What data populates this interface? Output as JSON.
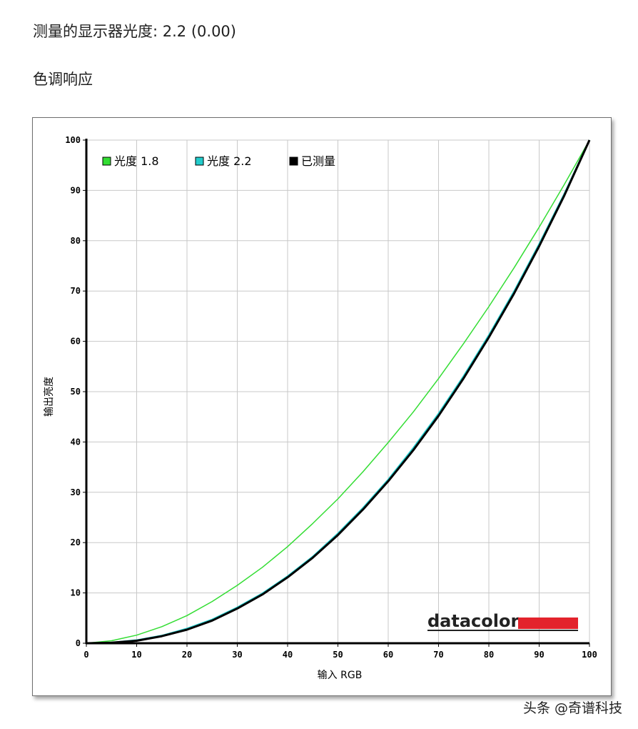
{
  "header": {
    "gamma_label": "测量的显示器光度:",
    "gamma_value": "2.2 (0.00)",
    "section_title": "色调响应"
  },
  "chart_data": {
    "type": "line",
    "xlabel": "输入 RGB",
    "ylabel": "输出亮度",
    "xlim": [
      0,
      100
    ],
    "ylim": [
      0,
      100
    ],
    "xticks": [
      0,
      10,
      20,
      30,
      40,
      50,
      60,
      70,
      80,
      90,
      100
    ],
    "yticks": [
      0,
      10,
      20,
      30,
      40,
      50,
      60,
      70,
      80,
      90,
      100
    ],
    "grid": true,
    "legend_position": "top-left",
    "series": [
      {
        "name": "光度 1.8",
        "color": "#33dd33",
        "x": [
          0,
          5,
          10,
          15,
          20,
          25,
          30,
          35,
          40,
          45,
          50,
          55,
          60,
          65,
          70,
          75,
          80,
          85,
          90,
          95,
          100
        ],
        "y": [
          0,
          0.5,
          1.6,
          3.3,
          5.5,
          8.3,
          11.5,
          15.1,
          19.2,
          23.8,
          28.7,
          34.1,
          39.9,
          46.0,
          52.6,
          59.6,
          66.9,
          74.6,
          82.7,
          91.2,
          100
        ]
      },
      {
        "name": "光度 2.2",
        "color": "#22cccc",
        "x": [
          0,
          5,
          10,
          15,
          20,
          25,
          30,
          35,
          40,
          45,
          50,
          55,
          60,
          65,
          70,
          75,
          80,
          85,
          90,
          95,
          100
        ],
        "y": [
          0,
          0.1,
          0.6,
          1.5,
          2.9,
          4.7,
          7.1,
          9.9,
          13.3,
          17.2,
          21.8,
          26.9,
          32.5,
          38.8,
          45.6,
          53.1,
          61.2,
          69.9,
          79.3,
          89.3,
          100
        ]
      },
      {
        "name": "已测量",
        "color": "#000000",
        "x": [
          0,
          5,
          10,
          15,
          20,
          25,
          30,
          35,
          40,
          45,
          50,
          55,
          60,
          65,
          70,
          75,
          80,
          85,
          90,
          95,
          100
        ],
        "y": [
          0,
          0.1,
          0.5,
          1.4,
          2.7,
          4.5,
          6.9,
          9.7,
          13.1,
          17.0,
          21.5,
          26.6,
          32.2,
          38.4,
          45.2,
          52.7,
          60.8,
          69.5,
          78.9,
          89.0,
          100
        ]
      }
    ]
  },
  "logo": {
    "text": "datacolor",
    "bar_color": "#e3232c"
  },
  "watermark": "头条 @奇谱科技"
}
